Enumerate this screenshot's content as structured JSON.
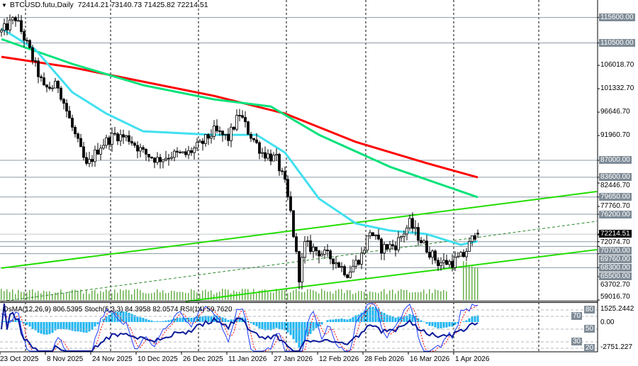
{
  "header": {
    "symbol": "BTCUSD.futu,Daily",
    "ohlc": "72414.21 73140.73 71425.82 72214.51"
  },
  "indicator_header": "OsMA(12,26,9) 806.5395  Stoch(5,3,3) 84.3958 82.0574  RSI(14) 59.7620",
  "colors": {
    "ma_red": "#ff0000",
    "ma_green": "#00e27a",
    "ma_cyan": "#40e0f0",
    "trendline": "#22dd00",
    "volume": "#6ab04c",
    "osma": "#1fb4f0",
    "level_line": "#8c99a6"
  },
  "price_axis": {
    "ticks": [
      "106018.70",
      "101332.70",
      "96646.70",
      "91960.70",
      "82446.70",
      "77760.70",
      "72074.70",
      "63702.70",
      "59016.70"
    ],
    "levels": [
      "115600.00",
      "110500.00",
      "87000.00",
      "83600.00",
      "79650.00",
      "76200.00",
      "70700.00",
      "69760.00",
      "68300.00",
      "65500.00"
    ],
    "current": "72214.51"
  },
  "indicator_axis": {
    "top": "1525.2442",
    "zero": "0.00",
    "bottom": "-2751.227",
    "levels": [
      "80",
      "70",
      "50",
      "30",
      "20"
    ]
  },
  "date_axis": [
    "23 Oct 2025",
    "8 Nov 2025",
    "24 Nov 2025",
    "10 Dec 2025",
    "26 Dec 2025",
    "11 Jan 2026",
    "27 Jan 2026",
    "12 Feb 2026",
    "28 Feb 2026",
    "16 Mar 2026",
    "1 Apr 2026"
  ],
  "chart_data": {
    "type": "candlestick",
    "symbol": "BTCUSD.futu",
    "timeframe": "Daily",
    "last": {
      "open": 72414.21,
      "high": 73140.73,
      "low": 71425.82,
      "close": 72214.51
    },
    "ylim": [
      59016.7,
      117000
    ],
    "close_path": [
      [
        "2025-10-23",
        112700
      ],
      [
        "2025-10-28",
        115500
      ],
      [
        "2025-11-02",
        108860
      ],
      [
        "2025-11-07",
        101330
      ],
      [
        "2025-11-12",
        102000
      ],
      [
        "2025-11-17",
        93500
      ],
      [
        "2025-11-22",
        85700
      ],
      [
        "2025-11-27",
        90000
      ],
      [
        "2025-12-02",
        92100
      ],
      [
        "2025-12-07",
        91400
      ],
      [
        "2025-12-12",
        88550
      ],
      [
        "2025-12-17",
        87130
      ],
      [
        "2025-12-22",
        88130
      ],
      [
        "2025-12-27",
        88130
      ],
      [
        "2026-01-01",
        90000
      ],
      [
        "2026-01-06",
        92800
      ],
      [
        "2026-01-11",
        91400
      ],
      [
        "2026-01-15",
        96360
      ],
      [
        "2026-01-18",
        92800
      ],
      [
        "2026-01-23",
        88550
      ],
      [
        "2026-01-28",
        87130
      ],
      [
        "2026-01-31",
        82160
      ],
      [
        "2026-02-02",
        76480
      ],
      [
        "2026-02-05",
        63700
      ],
      [
        "2026-02-07",
        70090
      ],
      [
        "2026-02-12",
        68670
      ],
      [
        "2026-02-17",
        67250
      ],
      [
        "2026-02-22",
        64400
      ],
      [
        "2026-02-27",
        67960
      ],
      [
        "2026-03-02",
        72930
      ],
      [
        "2026-03-06",
        69380
      ],
      [
        "2026-03-11",
        70090
      ],
      [
        "2026-03-16",
        74350
      ],
      [
        "2026-03-21",
        70090
      ],
      [
        "2026-03-26",
        66540
      ],
      [
        "2026-03-31",
        66540
      ],
      [
        "2026-04-04",
        67960
      ],
      [
        "2026-04-08",
        72220
      ],
      [
        "2026-04-09",
        72214.51
      ]
    ],
    "moving_averages": [
      {
        "color": "red",
        "points": [
          [
            "2025-10-23",
            107723
          ],
          [
            "2025-11-17",
            105600
          ],
          [
            "2025-12-12",
            102750
          ],
          [
            "2026-01-06",
            99900
          ],
          [
            "2026-01-31",
            96360
          ],
          [
            "2026-02-25",
            90680
          ],
          [
            "2026-03-22",
            86420
          ],
          [
            "2026-04-09",
            83580
          ]
        ]
      },
      {
        "color": "green",
        "points": [
          [
            "2025-10-23",
            111270
          ],
          [
            "2025-11-17",
            106300
          ],
          [
            "2025-12-12",
            102040
          ],
          [
            "2026-01-06",
            99200
          ],
          [
            "2026-01-26",
            97780
          ],
          [
            "2026-02-12",
            92100
          ],
          [
            "2026-03-09",
            85700
          ],
          [
            "2026-04-09",
            79600
          ]
        ]
      },
      {
        "color": "cyan",
        "points": [
          [
            "2025-10-23",
            113400
          ],
          [
            "2025-11-04",
            109150
          ],
          [
            "2025-11-17",
            100620
          ],
          [
            "2025-11-29",
            96360
          ],
          [
            "2025-12-12",
            92800
          ],
          [
            "2026-01-06",
            92100
          ],
          [
            "2026-01-21",
            92100
          ],
          [
            "2026-01-31",
            88550
          ],
          [
            "2026-02-12",
            79320
          ],
          [
            "2026-02-25",
            74350
          ],
          [
            "2026-03-09",
            72930
          ],
          [
            "2026-03-22",
            72220
          ],
          [
            "2026-04-03",
            70090
          ],
          [
            "2026-04-09",
            70800
          ]
        ]
      }
    ],
    "trendlines": [
      {
        "style": "solid",
        "from": [
          "2025-10-23",
          65407
        ],
        "to": [
          "2026-05-21",
          80743
        ]
      },
      {
        "style": "solid",
        "from": [
          "2025-12-27",
          58730
        ],
        "to": [
          "2026-05-21",
          69110
        ]
      },
      {
        "style": "dashed",
        "from": [
          "2025-10-23",
          58730
        ],
        "to": [
          "2026-05-21",
          74800
        ]
      }
    ]
  }
}
